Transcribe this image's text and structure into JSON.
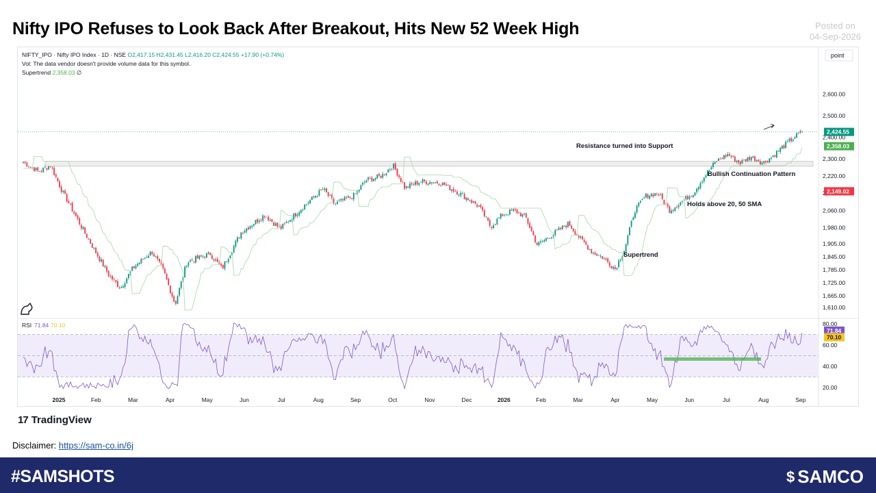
{
  "header": {
    "title": "Nifty IPO Refuses to Look Back After Breakout, Hits New 52 Week High",
    "posted_label": "Posted on",
    "posted_date": "04-Sep-2026"
  },
  "legend": {
    "symbol": "NIFTY_IPO · Nifty IPO Index · 1D · NSE",
    "ohlc": "O2,417.15  H2,431.45  L2,416.20  C2,424.55  +17.90 (+0.74%)",
    "volume_note": "Vol: The data vendor doesn't provide volume data for this symbol.",
    "supertrend_label": "Supertrend",
    "supertrend_value": "2,358.03",
    "supertrend_suffix": "∅"
  },
  "colors": {
    "up": "#089981",
    "down": "#f23645",
    "supertrend": "#4caf50",
    "rsi": "#7e57c2",
    "rsi_band": "#f1ecfb",
    "footer": "#1f2a6b"
  },
  "scale_label": "point",
  "chart_data": [
    {
      "type": "candlestick",
      "title": "",
      "ylim": [
        1585,
        2690
      ],
      "y_ticks": [
        "2,600.00",
        "2,500.00",
        "2,400.00",
        "2,300.00",
        "2,220.00",
        "2,140.00",
        "2,060.00",
        "1,980.00",
        "1,905.00",
        "1,845.00",
        "1,785.00",
        "1,725.00",
        "1,665.00",
        "1,610.00"
      ],
      "y_tick_values": [
        2600,
        2500,
        2400,
        2300,
        2220,
        2140,
        2060,
        1980,
        1905,
        1845,
        1785,
        1725,
        1665,
        1610
      ],
      "x_ticks": [
        "2025",
        "Feb",
        "Mar",
        "Apr",
        "May",
        "Jun",
        "Jul",
        "Aug",
        "Sep",
        "Oct",
        "Nov",
        "Dec",
        "2026",
        "Feb",
        "Mar",
        "Apr",
        "May",
        "Jun",
        "Jul",
        "Aug",
        "Sep"
      ],
      "price_labels": [
        {
          "text": "2,424.55",
          "value": 2424.55,
          "color": "#089981"
        },
        {
          "text": "2,358.03",
          "value": 2358.03,
          "color": "#4caf50"
        },
        {
          "text": "2,149.02",
          "value": 2149.02,
          "color": "#f23645"
        }
      ],
      "resistance_zone": [
        2265,
        2288
      ],
      "annotations": [
        "Resistance turned into Support",
        "Bullish Continuation Pattern",
        "Holds above 20, 50 SMA",
        "Supertrend"
      ],
      "path_anchors": [
        {
          "t": 0.0,
          "v": 2285
        },
        {
          "t": 0.02,
          "v": 2240
        },
        {
          "t": 0.035,
          "v": 2270
        },
        {
          "t": 0.05,
          "v": 2150
        },
        {
          "t": 0.08,
          "v": 1950
        },
        {
          "t": 0.11,
          "v": 1760
        },
        {
          "t": 0.125,
          "v": 1700
        },
        {
          "t": 0.14,
          "v": 1790
        },
        {
          "t": 0.165,
          "v": 1870
        },
        {
          "t": 0.18,
          "v": 1780
        },
        {
          "t": 0.195,
          "v": 1625
        },
        {
          "t": 0.21,
          "v": 1820
        },
        {
          "t": 0.24,
          "v": 1860
        },
        {
          "t": 0.255,
          "v": 1790
        },
        {
          "t": 0.28,
          "v": 1960
        },
        {
          "t": 0.31,
          "v": 2040
        },
        {
          "t": 0.33,
          "v": 1975
        },
        {
          "t": 0.36,
          "v": 2080
        },
        {
          "t": 0.385,
          "v": 2160
        },
        {
          "t": 0.4,
          "v": 2090
        },
        {
          "t": 0.425,
          "v": 2130
        },
        {
          "t": 0.44,
          "v": 2200
        },
        {
          "t": 0.46,
          "v": 2220
        },
        {
          "t": 0.475,
          "v": 2270
        },
        {
          "t": 0.49,
          "v": 2165
        },
        {
          "t": 0.51,
          "v": 2195
        },
        {
          "t": 0.535,
          "v": 2190
        },
        {
          "t": 0.56,
          "v": 2140
        },
        {
          "t": 0.585,
          "v": 2080
        },
        {
          "t": 0.6,
          "v": 1985
        },
        {
          "t": 0.615,
          "v": 2040
        },
        {
          "t": 0.63,
          "v": 2060
        },
        {
          "t": 0.645,
          "v": 2030
        },
        {
          "t": 0.66,
          "v": 1900
        },
        {
          "t": 0.68,
          "v": 1950
        },
        {
          "t": 0.7,
          "v": 2000
        },
        {
          "t": 0.715,
          "v": 1930
        },
        {
          "t": 0.73,
          "v": 1870
        },
        {
          "t": 0.745,
          "v": 1840
        },
        {
          "t": 0.76,
          "v": 1790
        },
        {
          "t": 0.772,
          "v": 1880
        },
        {
          "t": 0.785,
          "v": 2060
        },
        {
          "t": 0.8,
          "v": 2130
        },
        {
          "t": 0.815,
          "v": 2140
        },
        {
          "t": 0.83,
          "v": 2060
        },
        {
          "t": 0.845,
          "v": 2100
        },
        {
          "t": 0.86,
          "v": 2140
        },
        {
          "t": 0.875,
          "v": 2220
        },
        {
          "t": 0.89,
          "v": 2290
        },
        {
          "t": 0.905,
          "v": 2320
        },
        {
          "t": 0.92,
          "v": 2280
        },
        {
          "t": 0.935,
          "v": 2310
        },
        {
          "t": 0.95,
          "v": 2280
        },
        {
          "t": 0.965,
          "v": 2320
        },
        {
          "t": 0.975,
          "v": 2355
        },
        {
          "t": 0.99,
          "v": 2400
        },
        {
          "t": 1.0,
          "v": 2424.55
        }
      ]
    },
    {
      "type": "line",
      "title": "RSI",
      "series": [
        {
          "name": "RSI",
          "value": "71.84"
        },
        {
          "name": "",
          "value": "70.10"
        }
      ],
      "ylim": [
        15,
        84
      ],
      "y_ticks": [
        "80.00",
        "60.00",
        "40.00",
        "20.00"
      ],
      "y_tick_values": [
        80,
        60,
        40,
        20
      ],
      "band": [
        30,
        70
      ],
      "mid": 50,
      "value_labels": [
        {
          "text": "71.84",
          "value": 71.84,
          "color": "#7e57c2"
        },
        {
          "text": "70.10",
          "value": 70.1,
          "color": "#f7c325"
        }
      ],
      "support_line": 47
    }
  ],
  "footer": {
    "hashtag": "#SAMSHOTS",
    "brand": "SAMCO"
  },
  "disclaimer": {
    "label": "Disclaimer:",
    "link": "https://sam-co.in/6j"
  },
  "tradingview": {
    "mark": "17",
    "label": "TradingView"
  }
}
